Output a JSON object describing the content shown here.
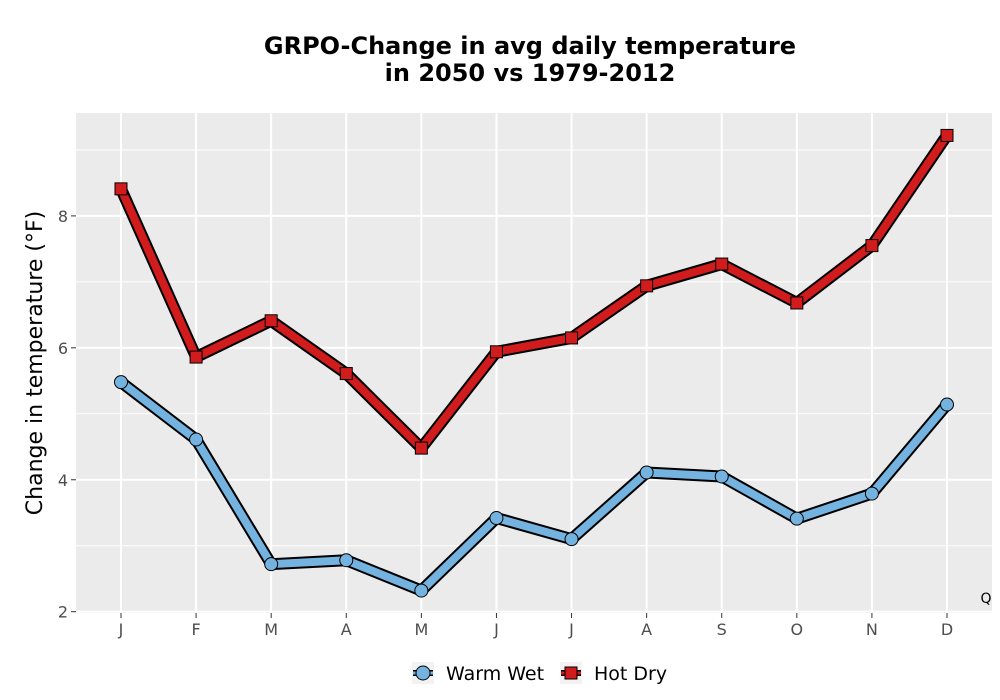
{
  "chart_data": {
    "type": "line",
    "title_line1": "GRPO-Change in avg daily temperature",
    "title_line2": "in 2050 vs 1979-2012",
    "xlabel": "",
    "ylabel": "Change in temperature (°F)",
    "categories": [
      "J",
      "F",
      "M",
      "A",
      "M",
      "J",
      "J",
      "A",
      "S",
      "O",
      "N",
      "D"
    ],
    "y_ticks": [
      2,
      4,
      6,
      8
    ],
    "ylim": [
      1.98,
      9.56
    ],
    "grid": true,
    "legend_position": "bottom",
    "corner_text": "Q",
    "series": [
      {
        "name": "Warm Wet",
        "marker": "circle",
        "color": "#74b3e0",
        "values": [
          5.48,
          4.61,
          2.72,
          2.78,
          2.32,
          3.42,
          3.1,
          4.11,
          4.05,
          3.41,
          3.79,
          5.14
        ]
      },
      {
        "name": "Hot Dry",
        "marker": "square",
        "color": "#d01c1c",
        "values": [
          8.41,
          5.86,
          6.41,
          5.61,
          4.48,
          5.94,
          6.15,
          6.94,
          7.27,
          6.68,
          7.55,
          9.22
        ]
      }
    ],
    "colors": {
      "panel_bg": "#ebebeb",
      "grid": "#ffffff",
      "outline": "#000000"
    }
  }
}
